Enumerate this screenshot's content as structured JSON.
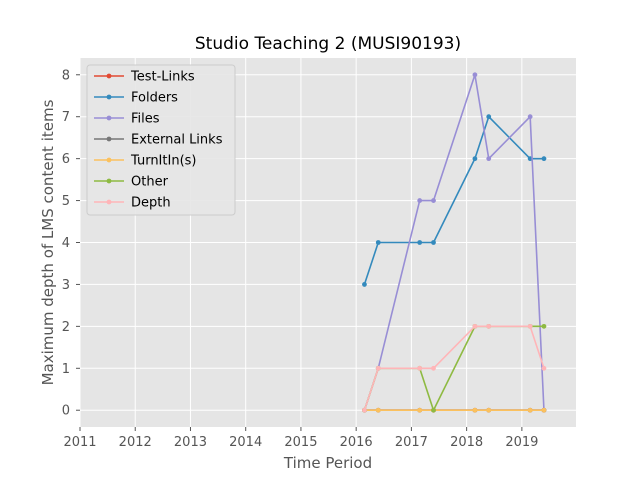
{
  "chart_data": {
    "type": "line",
    "title": "Studio Teaching 2 (MUSI90193)",
    "xlabel": "Time Period",
    "ylabel": "Maximum depth of LMS content items",
    "xlim": [
      2011.0,
      2019.98
    ],
    "ylim": [
      -0.4,
      8.4
    ],
    "x_ticks": [
      2011,
      2012,
      2013,
      2014,
      2015,
      2016,
      2017,
      2018,
      2019
    ],
    "y_ticks": [
      0,
      1,
      2,
      3,
      4,
      5,
      6,
      7,
      8
    ],
    "grid": true,
    "legend_position": "top-left",
    "x": [
      2016.15,
      2016.4,
      2017.15,
      2017.4,
      2018.15,
      2018.4,
      2019.15,
      2019.4
    ],
    "series": [
      {
        "name": "Test-Links",
        "color": "#E24A33",
        "values": [
          0,
          0,
          0,
          0,
          0,
          0,
          0,
          0
        ]
      },
      {
        "name": "Folders",
        "color": "#348ABD",
        "values": [
          3,
          4,
          4,
          4,
          6,
          7,
          6,
          6
        ]
      },
      {
        "name": "Files",
        "color": "#988ED5",
        "values": [
          0,
          1,
          5,
          5,
          8,
          6,
          7,
          0
        ]
      },
      {
        "name": "External Links",
        "color": "#777777",
        "values": [
          0,
          0,
          0,
          0,
          0,
          0,
          0,
          0
        ]
      },
      {
        "name": "TurnItIn(s)",
        "color": "#FBC15E",
        "values": [
          0,
          0,
          0,
          0,
          0,
          0,
          0,
          0
        ]
      },
      {
        "name": "Other",
        "color": "#8EBA42",
        "values": [
          0,
          1,
          1,
          0,
          2,
          2,
          2,
          2
        ]
      },
      {
        "name": "Depth",
        "color": "#FFB5B8",
        "values": [
          0,
          1,
          1,
          1,
          2,
          2,
          2,
          1
        ]
      }
    ]
  }
}
